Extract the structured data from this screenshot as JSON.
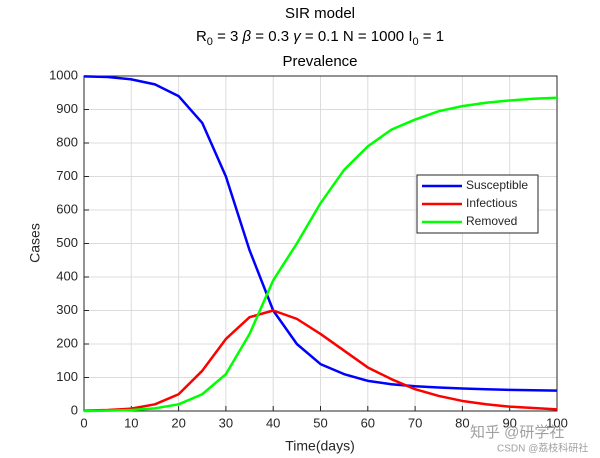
{
  "chart_data": {
    "type": "line",
    "title": "SIR model",
    "subtitle": "R0 = 3  β = 0.3  γ = 0.1  N = 1000  I0 = 1",
    "plot_title": "Prevalence",
    "xlabel": "Time(days)",
    "ylabel": "Cases",
    "x": [
      0,
      5,
      10,
      15,
      20,
      25,
      30,
      35,
      40,
      45,
      50,
      55,
      60,
      65,
      70,
      75,
      80,
      85,
      90,
      95,
      100
    ],
    "series": [
      {
        "name": "Susceptible",
        "color": "#0000ff",
        "values": [
          999,
          997,
          990,
          975,
          940,
          860,
          700,
          480,
          300,
          200,
          140,
          110,
          90,
          80,
          74,
          70,
          67,
          65,
          63,
          62,
          61
        ]
      },
      {
        "name": "Infectious",
        "color": "#ff0000",
        "values": [
          1,
          3,
          7,
          20,
          50,
          120,
          215,
          280,
          300,
          275,
          230,
          180,
          130,
          95,
          65,
          45,
          30,
          20,
          13,
          9,
          5
        ]
      },
      {
        "name": "Removed",
        "color": "#00ff00",
        "values": [
          0,
          1,
          3,
          8,
          20,
          50,
          110,
          230,
          390,
          500,
          620,
          720,
          790,
          840,
          870,
          895,
          910,
          920,
          927,
          932,
          935
        ]
      }
    ],
    "xlim": [
      0,
      100
    ],
    "ylim": [
      0,
      1000
    ],
    "xticks": [
      0,
      10,
      20,
      30,
      40,
      50,
      60,
      70,
      80,
      90,
      100
    ],
    "yticks": [
      0,
      100,
      200,
      300,
      400,
      500,
      600,
      700,
      800,
      900,
      1000
    ],
    "grid": true,
    "legend": "right",
    "watermark": [
      "知乎 @研学社",
      "CSDN @荔枝科研社"
    ]
  }
}
